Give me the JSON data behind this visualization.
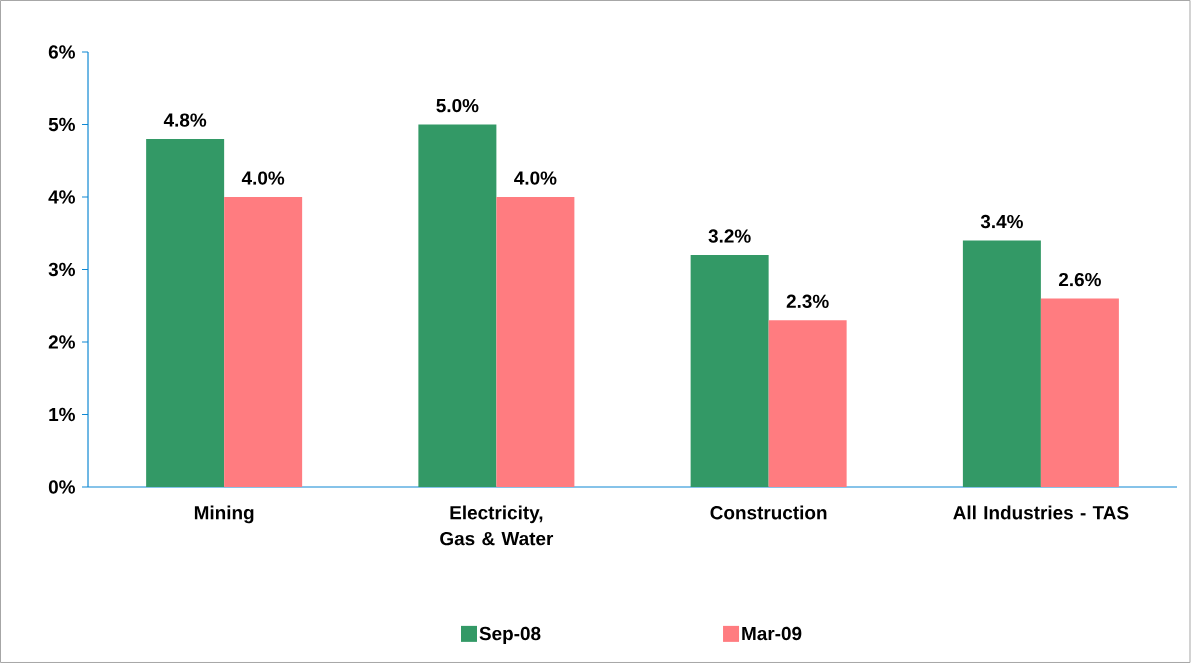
{
  "chart_data": {
    "type": "bar",
    "categories": [
      "Mining",
      "Electricity, Gas & Water",
      "Construction",
      "All Industries - TAS"
    ],
    "series": [
      {
        "name": "Sep-08",
        "color": "#339966",
        "values": [
          4.8,
          5.0,
          3.2,
          3.4
        ],
        "value_labels": [
          "4.8%",
          "5.0%",
          "3.2%",
          "3.4%"
        ]
      },
      {
        "name": "Mar-09",
        "color": "#ff7c80",
        "values": [
          4.0,
          4.0,
          2.3,
          2.6
        ],
        "value_labels": [
          "4.0%",
          "4.0%",
          "2.3%",
          "2.6%"
        ]
      }
    ],
    "ylim": [
      0,
      6
    ],
    "yticks": [
      {
        "value": 0,
        "label": "0%"
      },
      {
        "value": 1,
        "label": "1%"
      },
      {
        "value": 2,
        "label": "2%"
      },
      {
        "value": 3,
        "label": "3%"
      },
      {
        "value": 4,
        "label": "4%"
      },
      {
        "value": 5,
        "label": "5%"
      },
      {
        "value": 6,
        "label": "6%"
      }
    ],
    "legend": "bottom"
  }
}
